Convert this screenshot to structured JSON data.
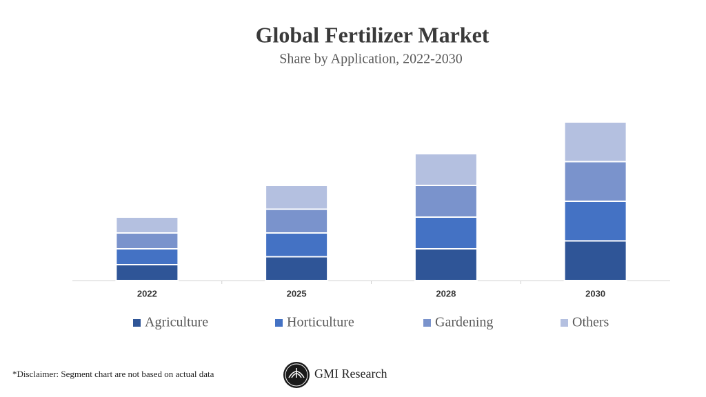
{
  "chart_data": {
    "type": "stacked_bar",
    "title": "Global Fertilizer Market",
    "subtitle": "Share by Application, 2022-2030",
    "categories": [
      "2022",
      "2025",
      "2028",
      "2030"
    ],
    "series": [
      {
        "name": "Agriculture",
        "color": "#2f5597",
        "values": [
          1,
          1.5,
          2,
          2.5
        ]
      },
      {
        "name": "Horticulture",
        "color": "#4472c4",
        "values": [
          1,
          1.5,
          2,
          2.5
        ]
      },
      {
        "name": "Gardening",
        "color": "#7a93cc",
        "values": [
          1,
          1.5,
          2,
          2.5
        ]
      },
      {
        "name": "Others",
        "color": "#b4c0e0",
        "values": [
          1,
          1.5,
          2,
          2.5
        ]
      }
    ],
    "ylim": [
      0,
      10.5
    ]
  },
  "footer": {
    "disclaimer": "*Disclaimer:  Segment chart are not based on actual data",
    "brand": "GMI Research"
  }
}
